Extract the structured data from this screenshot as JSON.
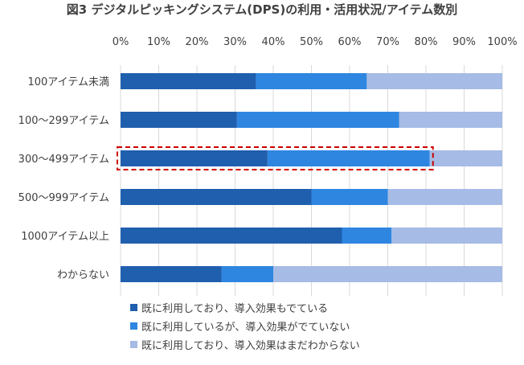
{
  "chart_data": {
    "type": "bar",
    "orientation": "horizontal",
    "stacked": "percent",
    "title": "図3 デジタルピッキングシステム(DPS)の利用・活用状況/アイテム数別",
    "x_ticks": [
      "0%",
      "10%",
      "20%",
      "30%",
      "40%",
      "50%",
      "60%",
      "70%",
      "80%",
      "90%",
      "100%"
    ],
    "xlim": [
      0,
      100
    ],
    "categories": [
      "100アイテム未満",
      "100～299アイテム",
      "300～499アイテム",
      "500～999アイテム",
      "1000アイテム以上",
      "わからない"
    ],
    "series": [
      {
        "name": "既に利用しており、導入効果もでている",
        "color": "#1f5fae",
        "values": [
          35.5,
          30.5,
          38.5,
          50,
          58,
          26.5
        ]
      },
      {
        "name": "既に利用しているが、導入効果がでていない",
        "color": "#2e86e0",
        "values": [
          29,
          42.5,
          42.5,
          20,
          13,
          13.5
        ]
      },
      {
        "name": "既に利用しており、導入効果はまだわからない",
        "color": "#a6bbe5",
        "values": [
          35.5,
          27,
          19,
          30,
          29,
          60
        ]
      }
    ],
    "highlight_category": "300～499アイテム",
    "highlight_color": "#cc0000",
    "grid": true,
    "legend_position": "bottom"
  }
}
